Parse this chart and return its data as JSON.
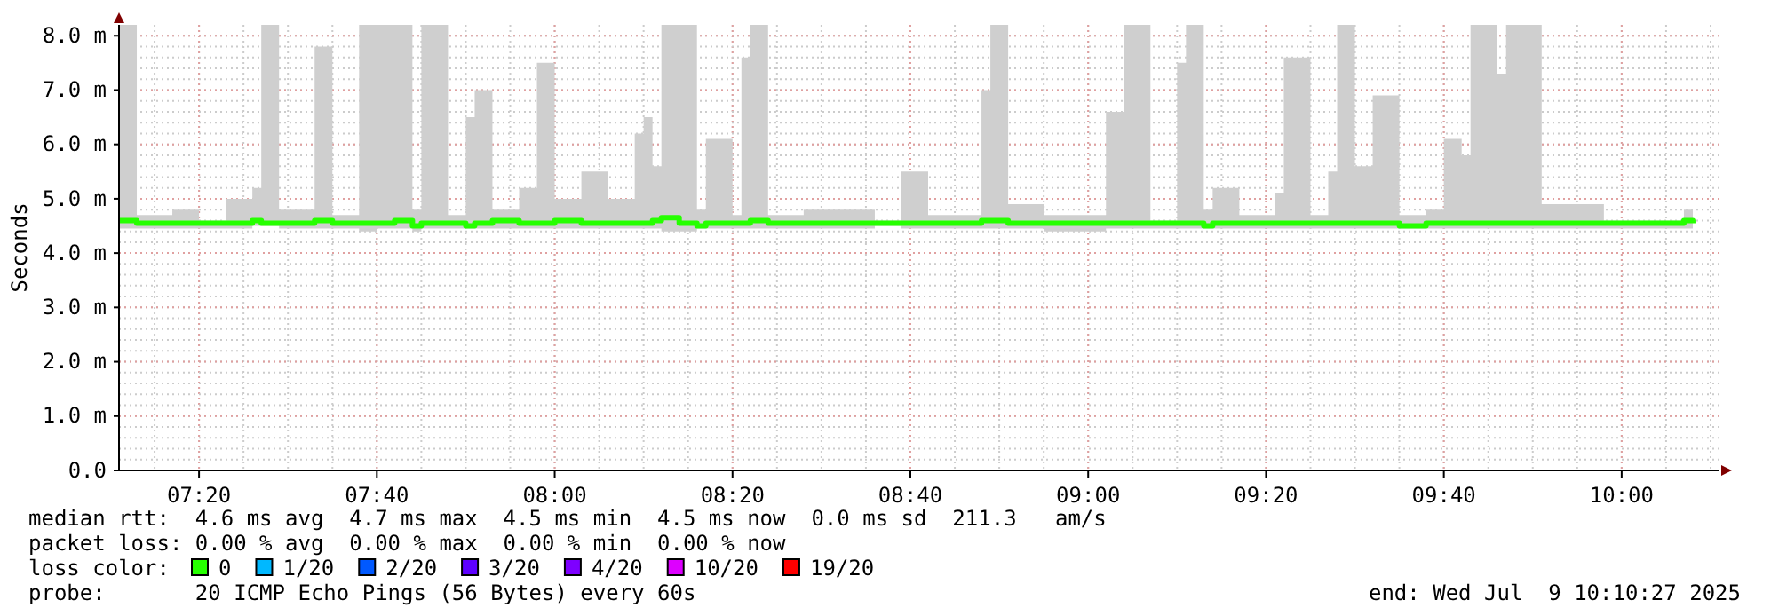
{
  "chart_data": {
    "type": "line",
    "ylabel": "Seconds",
    "legend_title": "loss color:",
    "legend": "bottom left",
    "grid": true,
    "marker": "none",
    "line_style": "solid",
    "xlim": [
      "2025-07-09T07:11",
      "2025-07-09T10:11"
    ],
    "xticks": [
      {
        "value": "2025-07-09T07:20",
        "label": "07:20"
      },
      {
        "value": "2025-07-09T07:40",
        "label": "07:40"
      },
      {
        "value": "2025-07-09T08:00",
        "label": "08:00"
      },
      {
        "value": "2025-07-09T08:20",
        "label": "08:20"
      },
      {
        "value": "2025-07-09T08:40",
        "label": "08:40"
      },
      {
        "value": "2025-07-09T09:00",
        "label": "09:00"
      },
      {
        "value": "2025-07-09T09:20",
        "label": "09:20"
      },
      {
        "value": "2025-07-09T09:40",
        "label": "09:40"
      },
      {
        "value": "2025-07-09T10:00",
        "label": "10:00"
      }
    ],
    "ylim": [
      0,
      8.2
    ],
    "yticks": [
      {
        "value": 0,
        "label": "0.0"
      },
      {
        "value": 1,
        "label": "1.0 m"
      },
      {
        "value": 2,
        "label": "2.0 m"
      },
      {
        "value": 3,
        "label": "3.0 m"
      },
      {
        "value": 4,
        "label": "4.0 m"
      },
      {
        "value": 5,
        "label": "5.0 m"
      },
      {
        "value": 6,
        "label": "6.0 m"
      },
      {
        "value": 7,
        "label": "7.0 m"
      },
      {
        "value": 8,
        "label": "8.0 m"
      }
    ],
    "annotations": [
      "median rtt:  4.6 ms avg  4.7 ms max  4.5 ms min  4.5 ms now  0.0 ms sd  211.3   am/s",
      "packet loss: 0.00 % avg  0.00 % max  0.00 % min  0.00 % now",
      "probe:       20 ICMP Echo Pings (56 Bytes) every 60s",
      "end: Wed Jul  9 10:10:27 2025"
    ],
    "series": [
      {
        "name": "0",
        "color": "#26ff00",
        "x": [
          "2025-07-09T07:11",
          "2025-07-09T07:13",
          "2025-07-09T07:17",
          "2025-07-09T07:20",
          "2025-07-09T07:23",
          "2025-07-09T07:26",
          "2025-07-09T07:27",
          "2025-07-09T07:29",
          "2025-07-09T07:33",
          "2025-07-09T07:35",
          "2025-07-09T07:38",
          "2025-07-09T07:40",
          "2025-07-09T07:42",
          "2025-07-09T07:44",
          "2025-07-09T07:45",
          "2025-07-09T07:48",
          "2025-07-09T07:50",
          "2025-07-09T07:51",
          "2025-07-09T07:53",
          "2025-07-09T07:56",
          "2025-07-09T07:58",
          "2025-07-09T08:00",
          "2025-07-09T08:03",
          "2025-07-09T08:06",
          "2025-07-09T08:09",
          "2025-07-09T08:10",
          "2025-07-09T08:11",
          "2025-07-09T08:12",
          "2025-07-09T08:14",
          "2025-07-09T08:16",
          "2025-07-09T08:17",
          "2025-07-09T08:20",
          "2025-07-09T08:21",
          "2025-07-09T08:22",
          "2025-07-09T08:24",
          "2025-07-09T08:28",
          "2025-07-09T08:32",
          "2025-07-09T08:36",
          "2025-07-09T08:39",
          "2025-07-09T08:42",
          "2025-07-09T08:46",
          "2025-07-09T08:48",
          "2025-07-09T08:49",
          "2025-07-09T08:51",
          "2025-07-09T08:55",
          "2025-07-09T08:59",
          "2025-07-09T09:02",
          "2025-07-09T09:04",
          "2025-07-09T09:07",
          "2025-07-09T09:10",
          "2025-07-09T09:11",
          "2025-07-09T09:13",
          "2025-07-09T09:14",
          "2025-07-09T09:17",
          "2025-07-09T09:21",
          "2025-07-09T09:22",
          "2025-07-09T09:25",
          "2025-07-09T09:27",
          "2025-07-09T09:28",
          "2025-07-09T09:30",
          "2025-07-09T09:32",
          "2025-07-09T09:35",
          "2025-07-09T09:38",
          "2025-07-09T09:40",
          "2025-07-09T09:42",
          "2025-07-09T09:43",
          "2025-07-09T09:46",
          "2025-07-09T09:47",
          "2025-07-09T09:49",
          "2025-07-09T09:51",
          "2025-07-09T09:54",
          "2025-07-09T09:58",
          "2025-07-09T10:07",
          "2025-07-09T10:08"
        ],
        "values": [
          4.6,
          4.55,
          4.55,
          4.55,
          4.55,
          4.6,
          4.55,
          4.55,
          4.6,
          4.55,
          4.55,
          4.55,
          4.6,
          4.5,
          4.55,
          4.55,
          4.5,
          4.55,
          4.6,
          4.55,
          4.55,
          4.6,
          4.55,
          4.55,
          4.55,
          4.55,
          4.6,
          4.65,
          4.55,
          4.5,
          4.55,
          4.55,
          4.55,
          4.6,
          4.55,
          4.55,
          4.55,
          4.55,
          4.55,
          4.55,
          4.55,
          4.6,
          4.6,
          4.55,
          4.55,
          4.55,
          4.55,
          4.55,
          4.55,
          4.55,
          4.55,
          4.5,
          4.55,
          4.55,
          4.55,
          4.55,
          4.55,
          4.55,
          4.55,
          4.55,
          4.55,
          4.5,
          4.55,
          4.55,
          4.55,
          4.55,
          4.55,
          4.55,
          4.55,
          4.55,
          4.55,
          4.55,
          4.6,
          4.55
        ],
        "lower": [
          4.45,
          4.45,
          4.45,
          4.45,
          4.45,
          4.5,
          4.5,
          4.45,
          4.45,
          4.45,
          4.4,
          4.45,
          4.45,
          4.4,
          4.45,
          4.45,
          4.45,
          4.45,
          4.45,
          4.45,
          4.45,
          4.45,
          4.45,
          4.45,
          4.45,
          4.45,
          4.45,
          4.4,
          4.4,
          4.45,
          4.45,
          4.45,
          4.45,
          4.45,
          4.45,
          4.45,
          4.45,
          4.5,
          4.45,
          4.45,
          4.45,
          4.45,
          4.45,
          4.45,
          4.4,
          4.4,
          4.45,
          4.45,
          4.45,
          4.45,
          4.45,
          4.45,
          4.45,
          4.45,
          4.45,
          4.45,
          4.45,
          4.45,
          4.45,
          4.45,
          4.45,
          4.45,
          4.45,
          4.45,
          4.45,
          4.45,
          4.45,
          4.45,
          4.45,
          4.45,
          4.45,
          4.45,
          4.45,
          4.5
        ],
        "upper": [
          8.2,
          4.7,
          4.8,
          4.6,
          5.0,
          5.2,
          8.2,
          4.8,
          7.8,
          4.7,
          8.2,
          8.2,
          8.2,
          4.8,
          8.2,
          4.7,
          6.5,
          7.0,
          4.8,
          5.2,
          7.5,
          5.0,
          5.5,
          5.0,
          6.2,
          6.5,
          5.6,
          8.2,
          8.2,
          4.8,
          6.1,
          4.7,
          7.6,
          8.2,
          4.7,
          4.8,
          4.8,
          4.6,
          5.5,
          4.7,
          4.7,
          7.0,
          8.2,
          4.9,
          4.7,
          4.7,
          6.6,
          8.2,
          4.6,
          7.5,
          8.2,
          4.8,
          5.2,
          4.7,
          5.1,
          7.6,
          4.7,
          5.5,
          8.2,
          5.6,
          6.9,
          4.7,
          4.8,
          6.1,
          5.8,
          8.2,
          7.3,
          8.2,
          8.2,
          4.9,
          4.9,
          4.6,
          4.8,
          4.6
        ]
      },
      {
        "name": "1/20",
        "color": "#00b8ff"
      },
      {
        "name": "2/20",
        "color": "#0059ff"
      },
      {
        "name": "3/20",
        "color": "#5e00ff"
      },
      {
        "name": "4/20",
        "color": "#7e00ff"
      },
      {
        "name": "10/20",
        "color": "#dd00ff"
      },
      {
        "name": "19/20",
        "color": "#ff0000"
      }
    ]
  }
}
